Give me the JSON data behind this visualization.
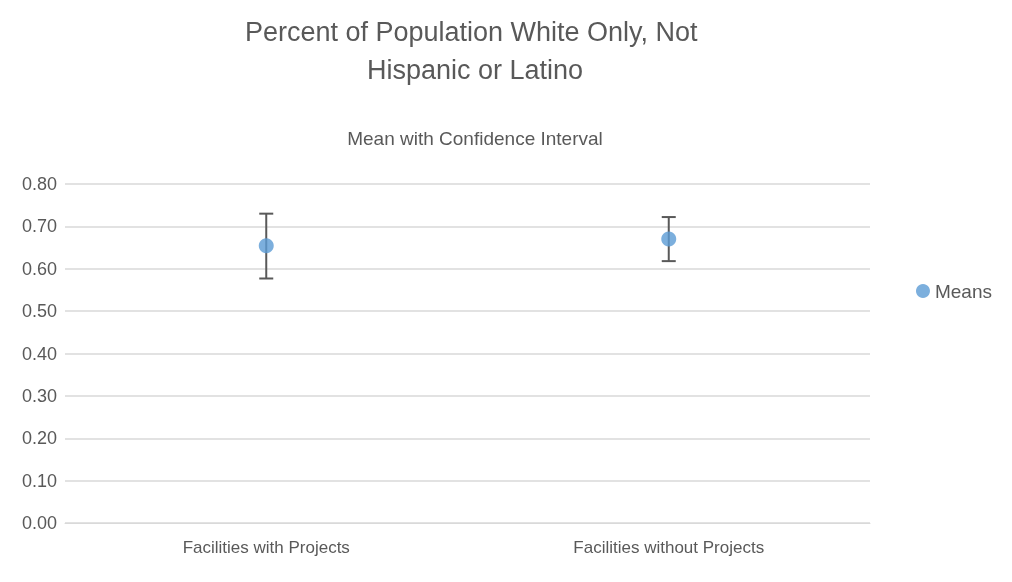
{
  "chart_data": {
    "type": "scatter",
    "title": "Percent of Population White Only, Not Hispanic or Latino",
    "subtitle": "Mean with Confidence Interval",
    "categories": [
      "Facilities with Projects",
      "Facilities without Projects"
    ],
    "series": [
      {
        "name": "Means",
        "color": "#5b9bd5",
        "values": [
          0.654,
          0.67
        ],
        "errors": [
          [
            0.577,
            0.73
          ],
          [
            0.618,
            0.722
          ]
        ]
      }
    ],
    "ylim": [
      0,
      0.8
    ],
    "yticks": [
      {
        "value": 0,
        "label": "0.00"
      },
      {
        "value": 0.1,
        "label": "0.10"
      },
      {
        "value": 0.2,
        "label": "0.20"
      },
      {
        "value": 0.3,
        "label": "0.30"
      },
      {
        "value": 0.4,
        "label": "0.40"
      },
      {
        "value": 0.5,
        "label": "0.50"
      },
      {
        "value": 0.6,
        "label": "0.60"
      },
      {
        "value": 0.7,
        "label": "0.70"
      },
      {
        "value": 0.8,
        "label": "0.80"
      }
    ],
    "grid": "y",
    "legend": "right",
    "marker": "circle"
  }
}
